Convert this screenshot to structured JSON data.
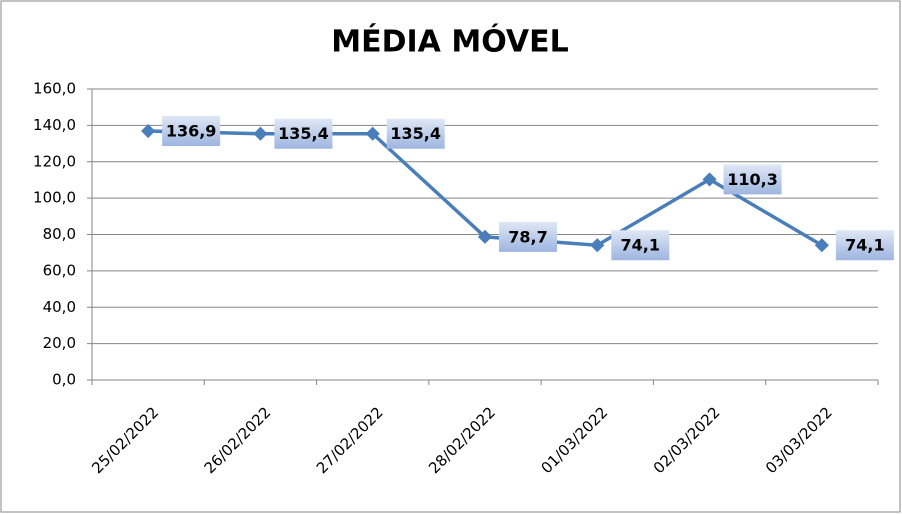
{
  "chart_data": {
    "type": "line",
    "title": "MÉDIA MÓVEL",
    "categories": [
      "25/02/2022",
      "26/02/2022",
      "27/02/2022",
      "28/02/2022",
      "01/03/2022",
      "02/03/2022",
      "03/03/2022"
    ],
    "series": [
      {
        "color": "#4a7ebb",
        "values": [
          136.9,
          135.4,
          135.4,
          78.7,
          74.1,
          110.3,
          74.1
        ],
        "value_labels": [
          "136,9",
          "135,4",
          "135,4",
          "78,7",
          "74,1",
          "110,3",
          "74,1"
        ]
      }
    ],
    "ylim": [
      0,
      160
    ],
    "yticks": [
      {
        "value": 0,
        "label": "0,0"
      },
      {
        "value": 20,
        "label": "20,0"
      },
      {
        "value": 40,
        "label": "40,0"
      },
      {
        "value": 60,
        "label": "60,0"
      },
      {
        "value": 80,
        "label": "80,0"
      },
      {
        "value": 100,
        "label": "100,0"
      },
      {
        "value": 120,
        "label": "120,0"
      },
      {
        "value": 140,
        "label": "140,0"
      },
      {
        "value": 160,
        "label": "160,0"
      }
    ],
    "grid": true
  }
}
